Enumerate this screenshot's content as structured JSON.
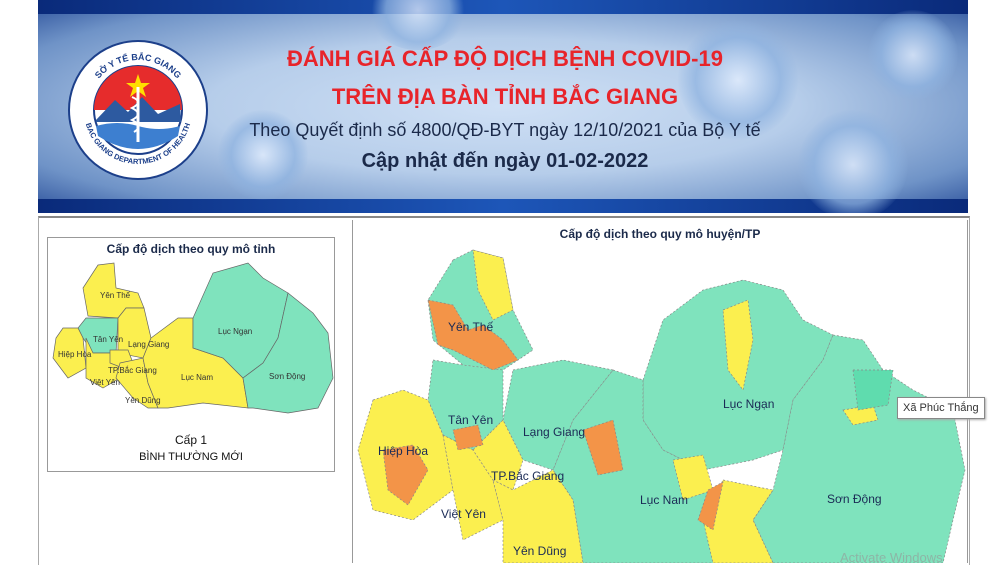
{
  "header": {
    "logo_text_top": "SỞ Y TẾ BẮC GIANG",
    "logo_text_bottom": "BAC GIANG DEPARTMENT OF HEALTH",
    "title_line1": "ĐÁNH GIÁ CẤP ĐỘ DỊCH BỆNH COVID-19",
    "title_line2": "TRÊN ĐỊA BÀN TỈNH BẮC GIANG",
    "subtitle": "Theo Quyết định số 4800/QĐ-BYT ngày 12/10/2021 của Bộ Y tế",
    "updated": "Cập nhật đến ngày 01-02-2022"
  },
  "colors": {
    "level1_green": "#7fe3bd",
    "level2_yellow": "#fbef4f",
    "level3_orange": "#f39448",
    "title_red": "#e8242a"
  },
  "province_map": {
    "title": "Cấp độ dịch theo quy mô tỉnh",
    "districts": [
      {
        "name": "Yên Thế",
        "level": "yellow"
      },
      {
        "name": "Tân Yên",
        "level": "green"
      },
      {
        "name": "Lạng Giang",
        "level": "yellow"
      },
      {
        "name": "Hiệp Hòa",
        "level": "yellow"
      },
      {
        "name": "TP.Bắc Giang",
        "level": "yellow"
      },
      {
        "name": "Việt Yên",
        "level": "yellow"
      },
      {
        "name": "Yên Dũng",
        "level": "yellow"
      },
      {
        "name": "Lục Nam",
        "level": "yellow"
      },
      {
        "name": "Lục Ngạn",
        "level": "green"
      },
      {
        "name": "Sơn Động",
        "level": "green"
      }
    ],
    "level_label": "Cấp 1",
    "level_name": "BÌNH THƯỜNG MỚI"
  },
  "district_map": {
    "title": "Cấp độ dịch theo quy mô huyện/TP",
    "labels": [
      "Yên Thế",
      "Tân Yên",
      "Lạng Giang",
      "Hiệp Hòa",
      "TP.Bắc Giang",
      "Việt Yên",
      "Yên Dũng",
      "Lục Nam",
      "Lục Ngạn",
      "Sơn Động"
    ],
    "tooltip": "Xã Phúc Thắng"
  },
  "watermark": "Activate Windows"
}
